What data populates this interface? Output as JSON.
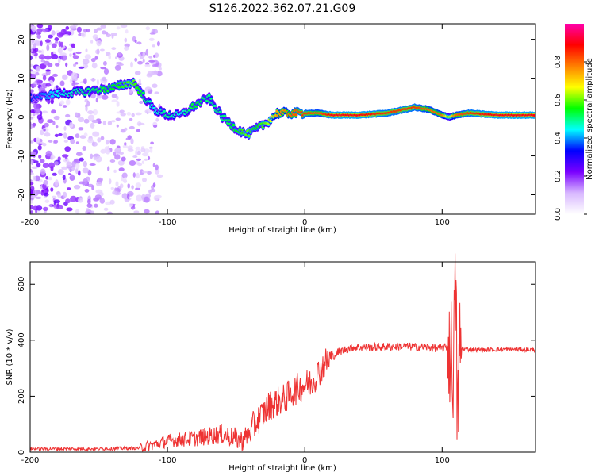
{
  "title": "S126.2022.362.07.21.G09",
  "chart_data": [
    {
      "type": "heatmap",
      "xlabel": "Height of straight line (km)",
      "ylabel": "Frequency (Hz)",
      "xlim": [
        -200,
        168
      ],
      "ylim": [
        -25,
        24
      ],
      "xticks": [
        -200,
        -100,
        0,
        100
      ],
      "yticks": [
        -20,
        -10,
        0,
        10,
        20
      ],
      "colorbar": {
        "label": "Normalized spectral amplitude",
        "range": [
          0,
          1
        ],
        "ticks": [
          "0.0",
          "0.2",
          "0.4",
          "0.6",
          "0.8"
        ],
        "colors": [
          "#ffffff",
          "#d8b8ff",
          "#7a00ff",
          "#0000ff",
          "#00ffff",
          "#00ff00",
          "#ffff00",
          "#ff7f00",
          "#ff0000",
          "#ff00aa"
        ]
      },
      "ridge": {
        "x": [
          -198,
          -180,
          -160,
          -140,
          -125,
          -110,
          -100,
          -90,
          -80,
          -70,
          -60,
          -50,
          -42,
          -35,
          -28,
          -20,
          -10,
          0,
          10,
          20,
          40,
          60,
          80,
          90,
          100,
          105,
          110,
          120,
          140,
          168
        ],
        "y": [
          5,
          6,
          6.5,
          7.5,
          9,
          2,
          0.5,
          0.5,
          3,
          5,
          0,
          -3,
          -4.5,
          -3,
          -1.5,
          1,
          1,
          1,
          1,
          0.5,
          0.5,
          1,
          2.5,
          2,
          0.5,
          0,
          0.5,
          1,
          0.5,
          0.5
        ],
        "amp": [
          0.35,
          0.45,
          0.5,
          0.55,
          0.6,
          0.45,
          0.5,
          0.45,
          0.55,
          0.5,
          0.5,
          0.55,
          0.6,
          0.55,
          0.6,
          0.75,
          0.8,
          0.85,
          0.8,
          0.9,
          0.9,
          0.85,
          0.85,
          0.8,
          0.8,
          0.6,
          0.8,
          0.85,
          0.9,
          0.9
        ]
      }
    },
    {
      "type": "line",
      "xlabel": "Height of straight line (km)",
      "ylabel": "SNR (10 * v/v)",
      "xlim": [
        -200,
        168
      ],
      "ylim": [
        0,
        680
      ],
      "xticks": [
        -200,
        -100,
        0,
        100
      ],
      "yticks": [
        0,
        200,
        400,
        600
      ],
      "color": "#ee3333",
      "series": [
        {
          "x": [
            -200,
            -150,
            -120,
            -100,
            -80,
            -60,
            -45,
            -35,
            -25,
            -15,
            -5,
            5,
            15,
            25,
            35,
            50,
            70,
            90,
            100,
            105,
            108,
            110,
            111,
            113,
            116,
            130,
            150,
            168
          ],
          "y": [
            12,
            12,
            15,
            40,
            50,
            65,
            40,
            110,
            170,
            190,
            230,
            250,
            320,
            360,
            375,
            375,
            378,
            375,
            370,
            380,
            320,
            600,
            110,
            370,
            368,
            365,
            368,
            366
          ]
        }
      ]
    }
  ]
}
